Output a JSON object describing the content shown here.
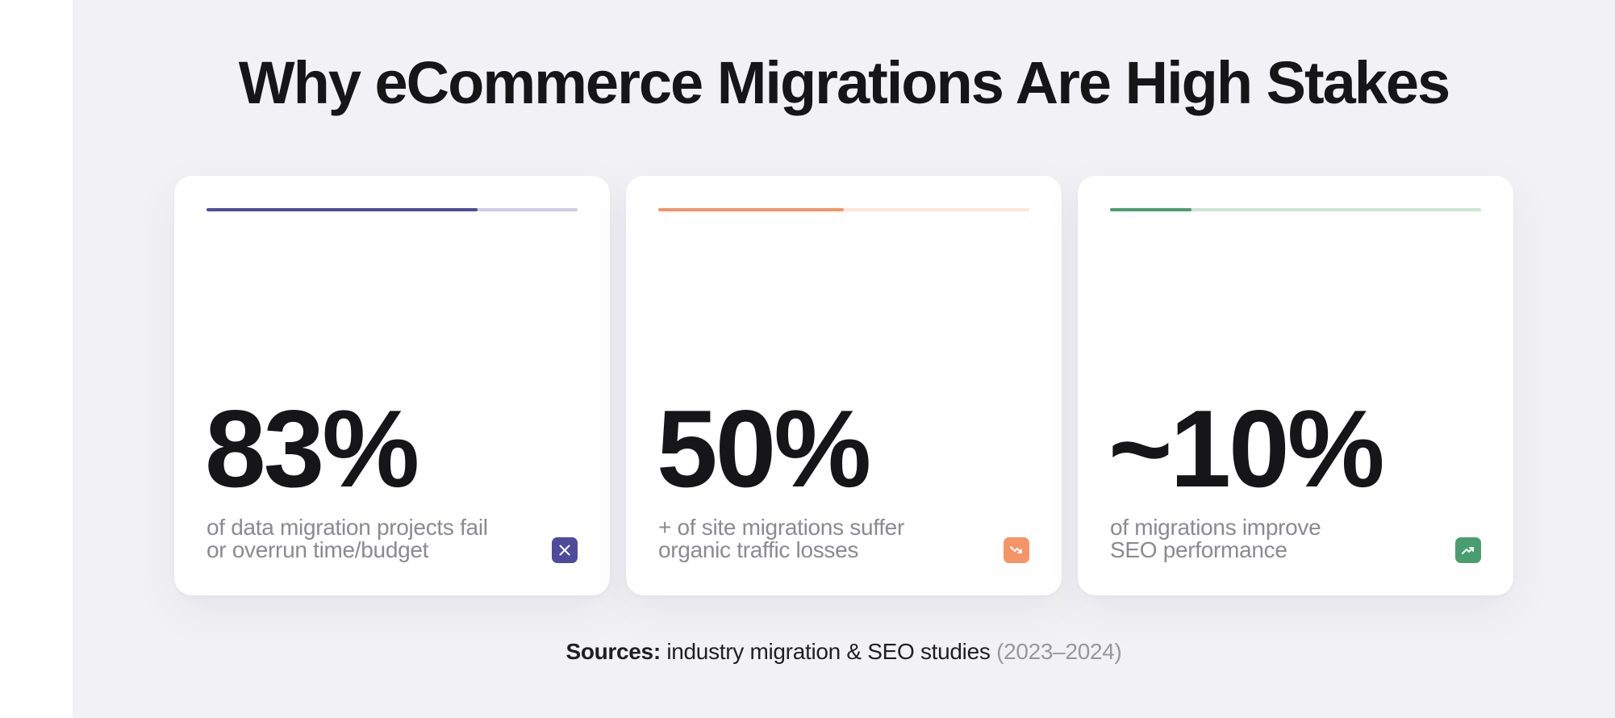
{
  "title": "Why eCommerce Migrations Are High Stakes",
  "cards": [
    {
      "stat": "83%",
      "desc_line1": "of data migration projects fail",
      "desc_line2": "or overrun time/budget",
      "progress": 0.73,
      "accent": "#4e4a9c",
      "track": "#cfcde2",
      "icon": "x-icon"
    },
    {
      "stat": "50%",
      "desc_line1": "+ of site migrations suffer",
      "desc_line2": "organic traffic losses",
      "progress": 0.5,
      "accent": "#f49467",
      "track": "#fde6d8",
      "icon": "trend-down-icon"
    },
    {
      "stat": "~10%",
      "desc_line1": "of migrations improve",
      "desc_line2": "SEO performance",
      "progress": 0.22,
      "accent": "#4a9d6f",
      "track": "#cbe5d3",
      "icon": "trend-up-icon"
    }
  ],
  "sources": {
    "label": "Sources:",
    "text": " industry migration & SEO studies ",
    "years": "(2023–2024)"
  }
}
